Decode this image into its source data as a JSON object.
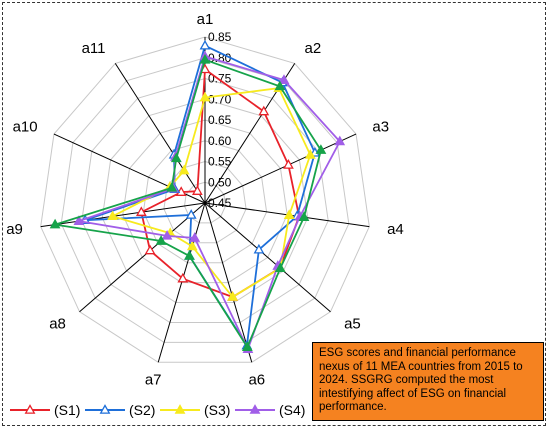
{
  "chart_data": {
    "type": "radar",
    "categories": [
      "a1",
      "a2",
      "a3",
      "a4",
      "a5",
      "a6",
      "a7",
      "a8",
      "a9",
      "a10",
      "a11"
    ],
    "rlim": [
      0.45,
      0.85
    ],
    "rticks": [
      "0.45",
      "0.50",
      "0.55",
      "0.60",
      "0.65",
      "0.70",
      "0.75",
      "0.80",
      "0.85"
    ],
    "grid": true,
    "legend_position": "bottom-left",
    "series": [
      {
        "name": "(S1)",
        "color": "#e8222a",
        "marker": "triangle-open",
        "values": [
          0.772,
          0.712,
          0.671,
          0.679,
          0.689,
          0.686,
          0.64,
          0.625,
          0.605,
          0.513,
          0.484
        ]
      },
      {
        "name": "(S2)",
        "color": "#1e6fd9",
        "marker": "triangle-open",
        "values": [
          0.829,
          0.795,
          0.741,
          0.674,
          0.622,
          0.808,
          0.583,
          0.494,
          0.742,
          0.53,
          0.588
        ]
      },
      {
        "name": "(S3)",
        "color": "#f7ea1e",
        "marker": "triangle-filled",
        "values": [
          0.704,
          0.779,
          0.729,
          0.655,
          0.69,
          0.686,
          0.559,
          0.561,
          0.675,
          0.543,
          0.543
        ]
      },
      {
        "name": "(S4)",
        "color": "#a15ee8",
        "marker": "triangle-filled",
        "values": [
          0.803,
          0.802,
          0.807,
          0.681,
          0.682,
          0.817,
          0.538,
          0.571,
          0.757,
          0.534,
          0.582
        ]
      },
      {
        "name": "",
        "color": "#16a34a",
        "marker": "triangle-filled",
        "values": [
          0.795,
          0.784,
          0.757,
          0.691,
          0.69,
          0.812,
          0.583,
          0.59,
          0.815,
          0.538,
          0.578
        ]
      }
    ]
  },
  "annotation": "ESG scores and financial performance nexus of 11 MEA countries from 2015 to 2024. SSGRG computed the most intestifying affect of ESG on financial performance."
}
